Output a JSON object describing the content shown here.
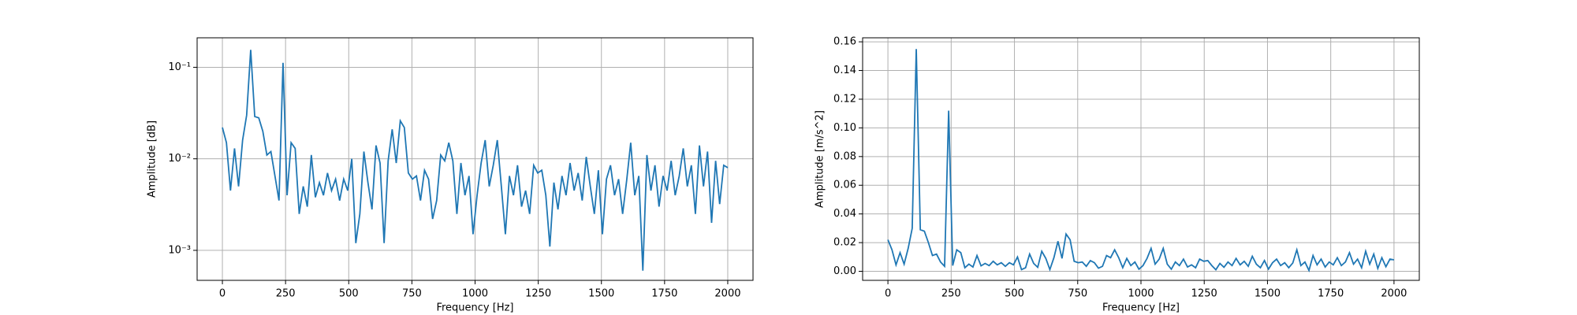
{
  "chart_data": [
    {
      "type": "line",
      "xlabel": "Frequency [Hz]",
      "ylabel": "Amplitude [dB]",
      "yscale": "log",
      "grid": true,
      "color": "#1f77b4",
      "x": [
        0,
        16,
        32,
        48,
        64,
        80,
        96,
        112,
        128,
        144,
        160,
        176,
        192,
        208,
        224,
        240,
        256,
        272,
        288,
        304,
        320,
        336,
        352,
        368,
        384,
        400,
        416,
        432,
        448,
        464,
        480,
        496,
        512,
        528,
        544,
        560,
        576,
        592,
        608,
        624,
        640,
        656,
        672,
        688,
        704,
        720,
        736,
        752,
        768,
        784,
        800,
        816,
        832,
        848,
        864,
        880,
        896,
        912,
        928,
        944,
        960,
        976,
        992,
        1008,
        1024,
        1040,
        1056,
        1072,
        1088,
        1104,
        1120,
        1136,
        1152,
        1168,
        1184,
        1200,
        1216,
        1232,
        1248,
        1264,
        1280,
        1296,
        1312,
        1328,
        1344,
        1360,
        1376,
        1392,
        1408,
        1424,
        1440,
        1456,
        1472,
        1488,
        1504,
        1520,
        1536,
        1552,
        1568,
        1584,
        1600,
        1616,
        1632,
        1648,
        1664,
        1680,
        1696,
        1712,
        1728,
        1744,
        1760,
        1776,
        1792,
        1808,
        1824,
        1840,
        1856,
        1872,
        1888,
        1904,
        1920,
        1936,
        1952,
        1968,
        1984,
        2000
      ],
      "values": [
        0.022,
        0.015,
        0.0045,
        0.013,
        0.005,
        0.016,
        0.03,
        0.155,
        0.029,
        0.028,
        0.02,
        0.011,
        0.012,
        0.0065,
        0.0035,
        0.112,
        0.004,
        0.015,
        0.013,
        0.0025,
        0.005,
        0.003,
        0.011,
        0.0038,
        0.0055,
        0.004,
        0.007,
        0.0045,
        0.006,
        0.0035,
        0.006,
        0.0045,
        0.01,
        0.0012,
        0.0025,
        0.012,
        0.0055,
        0.0028,
        0.014,
        0.009,
        0.0012,
        0.0095,
        0.021,
        0.009,
        0.026,
        0.022,
        0.007,
        0.006,
        0.0065,
        0.0035,
        0.0075,
        0.006,
        0.0022,
        0.0035,
        0.011,
        0.0095,
        0.015,
        0.0095,
        0.0025,
        0.009,
        0.004,
        0.0065,
        0.0015,
        0.004,
        0.009,
        0.016,
        0.005,
        0.0085,
        0.016,
        0.005,
        0.0015,
        0.0065,
        0.004,
        0.0085,
        0.003,
        0.0045,
        0.0025,
        0.0085,
        0.007,
        0.0075,
        0.004,
        0.0011,
        0.0055,
        0.0028,
        0.0065,
        0.004,
        0.009,
        0.0045,
        0.007,
        0.0035,
        0.0105,
        0.005,
        0.0025,
        0.0075,
        0.0015,
        0.006,
        0.0085,
        0.004,
        0.006,
        0.0025,
        0.0058,
        0.015,
        0.004,
        0.0065,
        0.0006,
        0.011,
        0.0045,
        0.0085,
        0.003,
        0.0065,
        0.0045,
        0.0095,
        0.004,
        0.0065,
        0.013,
        0.005,
        0.0085,
        0.0025,
        0.014,
        0.005,
        0.012,
        0.002,
        0.0095,
        0.0032,
        0.0085,
        0.008
      ],
      "xlim": [
        -100,
        2100
      ],
      "xticks": [
        0,
        250,
        500,
        750,
        1000,
        1250,
        1500,
        1750,
        2000
      ],
      "ylim": [
        0.00047,
        0.21
      ],
      "yticks": [
        {
          "value": 0.001,
          "label": "10⁻³"
        },
        {
          "value": 0.01,
          "label": "10⁻²"
        },
        {
          "value": 0.1,
          "label": "10⁻¹"
        }
      ]
    },
    {
      "type": "line",
      "xlabel": "Frequency [Hz]",
      "ylabel": "Amplitude [m/s^2]",
      "yscale": "linear",
      "grid": true,
      "color": "#1f77b4",
      "x": [
        0,
        16,
        32,
        48,
        64,
        80,
        96,
        112,
        128,
        144,
        160,
        176,
        192,
        208,
        224,
        240,
        256,
        272,
        288,
        304,
        320,
        336,
        352,
        368,
        384,
        400,
        416,
        432,
        448,
        464,
        480,
        496,
        512,
        528,
        544,
        560,
        576,
        592,
        608,
        624,
        640,
        656,
        672,
        688,
        704,
        720,
        736,
        752,
        768,
        784,
        800,
        816,
        832,
        848,
        864,
        880,
        896,
        912,
        928,
        944,
        960,
        976,
        992,
        1008,
        1024,
        1040,
        1056,
        1072,
        1088,
        1104,
        1120,
        1136,
        1152,
        1168,
        1184,
        1200,
        1216,
        1232,
        1248,
        1264,
        1280,
        1296,
        1312,
        1328,
        1344,
        1360,
        1376,
        1392,
        1408,
        1424,
        1440,
        1456,
        1472,
        1488,
        1504,
        1520,
        1536,
        1552,
        1568,
        1584,
        1600,
        1616,
        1632,
        1648,
        1664,
        1680,
        1696,
        1712,
        1728,
        1744,
        1760,
        1776,
        1792,
        1808,
        1824,
        1840,
        1856,
        1872,
        1888,
        1904,
        1920,
        1936,
        1952,
        1968,
        1984,
        2000
      ],
      "values": [
        0.022,
        0.015,
        0.0045,
        0.013,
        0.005,
        0.016,
        0.03,
        0.155,
        0.029,
        0.028,
        0.02,
        0.011,
        0.012,
        0.0065,
        0.0035,
        0.112,
        0.004,
        0.015,
        0.013,
        0.0025,
        0.005,
        0.003,
        0.011,
        0.0038,
        0.0055,
        0.004,
        0.007,
        0.0045,
        0.006,
        0.0035,
        0.006,
        0.0045,
        0.01,
        0.0012,
        0.0025,
        0.012,
        0.0055,
        0.0028,
        0.014,
        0.009,
        0.0012,
        0.0095,
        0.021,
        0.009,
        0.026,
        0.022,
        0.007,
        0.006,
        0.0065,
        0.0035,
        0.0075,
        0.006,
        0.0022,
        0.0035,
        0.011,
        0.0095,
        0.015,
        0.0095,
        0.0025,
        0.009,
        0.004,
        0.0065,
        0.0015,
        0.004,
        0.009,
        0.016,
        0.005,
        0.0085,
        0.016,
        0.005,
        0.0015,
        0.0065,
        0.004,
        0.0085,
        0.003,
        0.0045,
        0.0025,
        0.0085,
        0.007,
        0.0075,
        0.004,
        0.0011,
        0.0055,
        0.0028,
        0.0065,
        0.004,
        0.009,
        0.0045,
        0.007,
        0.0035,
        0.0105,
        0.005,
        0.0025,
        0.0075,
        0.0015,
        0.006,
        0.0085,
        0.004,
        0.006,
        0.0025,
        0.0058,
        0.015,
        0.004,
        0.0065,
        0.0006,
        0.011,
        0.0045,
        0.0085,
        0.003,
        0.0065,
        0.0045,
        0.0095,
        0.004,
        0.0065,
        0.013,
        0.005,
        0.0085,
        0.0025,
        0.014,
        0.005,
        0.012,
        0.002,
        0.0095,
        0.0032,
        0.0085,
        0.008
      ],
      "xlim": [
        -100,
        2100
      ],
      "xticks": [
        0,
        250,
        500,
        750,
        1000,
        1250,
        1500,
        1750,
        2000
      ],
      "ylim": [
        -0.0063,
        0.1628
      ],
      "yticks": [
        {
          "value": 0,
          "label": "0.00"
        },
        {
          "value": 0.02,
          "label": "0.02"
        },
        {
          "value": 0.04,
          "label": "0.04"
        },
        {
          "value": 0.06,
          "label": "0.06"
        },
        {
          "value": 0.08,
          "label": "0.08"
        },
        {
          "value": 0.1,
          "label": "0.10"
        },
        {
          "value": 0.12,
          "label": "0.12"
        },
        {
          "value": 0.14,
          "label": "0.14"
        },
        {
          "value": 0.16,
          "label": "0.16"
        }
      ]
    }
  ]
}
